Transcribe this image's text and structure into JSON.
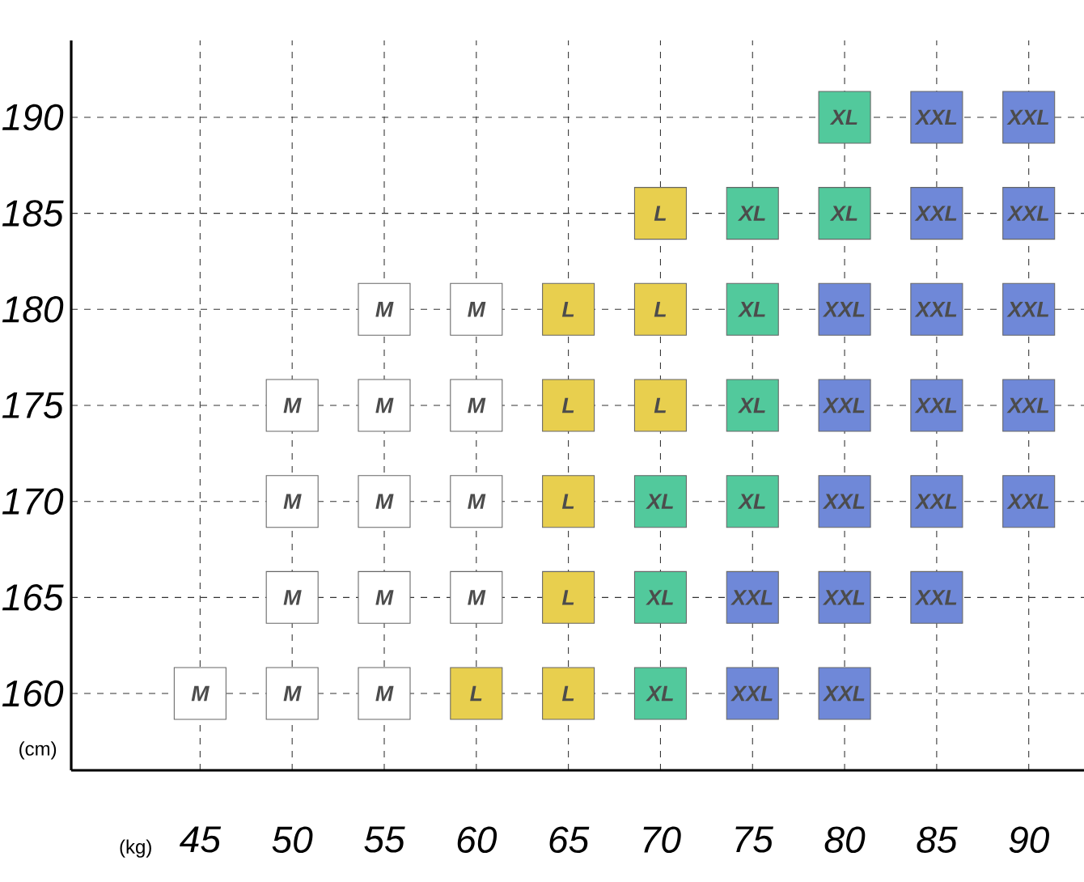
{
  "chart_data": {
    "type": "scatter",
    "xlabel": "(kg)",
    "ylabel": "(cm)",
    "xlim": [
      38,
      93
    ],
    "ylim": [
      156,
      194
    ],
    "xticks": [
      45,
      50,
      55,
      60,
      65,
      70,
      75,
      80,
      85,
      90
    ],
    "yticks": [
      160,
      165,
      170,
      175,
      180,
      185,
      190
    ],
    "grid": true,
    "marker": "square",
    "series": [
      {
        "name": "M",
        "color": "#ffffff",
        "x": [
          45,
          50,
          50,
          50,
          50,
          55,
          55,
          55,
          55,
          55,
          60,
          60,
          60,
          60
        ],
        "values": [
          160,
          160,
          165,
          170,
          175,
          160,
          165,
          170,
          175,
          180,
          165,
          170,
          175,
          180
        ]
      },
      {
        "name": "L",
        "color": "#e8cf4e",
        "x": [
          60,
          65,
          65,
          65,
          65,
          65,
          70,
          70,
          70
        ],
        "values": [
          160,
          160,
          165,
          170,
          175,
          180,
          175,
          180,
          185
        ]
      },
      {
        "name": "XL",
        "color": "#52c99c",
        "x": [
          70,
          70,
          70,
          75,
          75,
          75,
          75,
          80,
          80
        ],
        "values": [
          160,
          165,
          170,
          170,
          175,
          180,
          185,
          185,
          190
        ]
      },
      {
        "name": "XXL",
        "color": "#6f88d8",
        "x": [
          75,
          75,
          80,
          80,
          80,
          80,
          80,
          85,
          85,
          85,
          85,
          85,
          85,
          90,
          90,
          90,
          90,
          90
        ],
        "values": [
          160,
          165,
          160,
          165,
          170,
          175,
          180,
          165,
          170,
          175,
          180,
          185,
          190,
          170,
          175,
          180,
          185,
          190
        ]
      }
    ]
  }
}
